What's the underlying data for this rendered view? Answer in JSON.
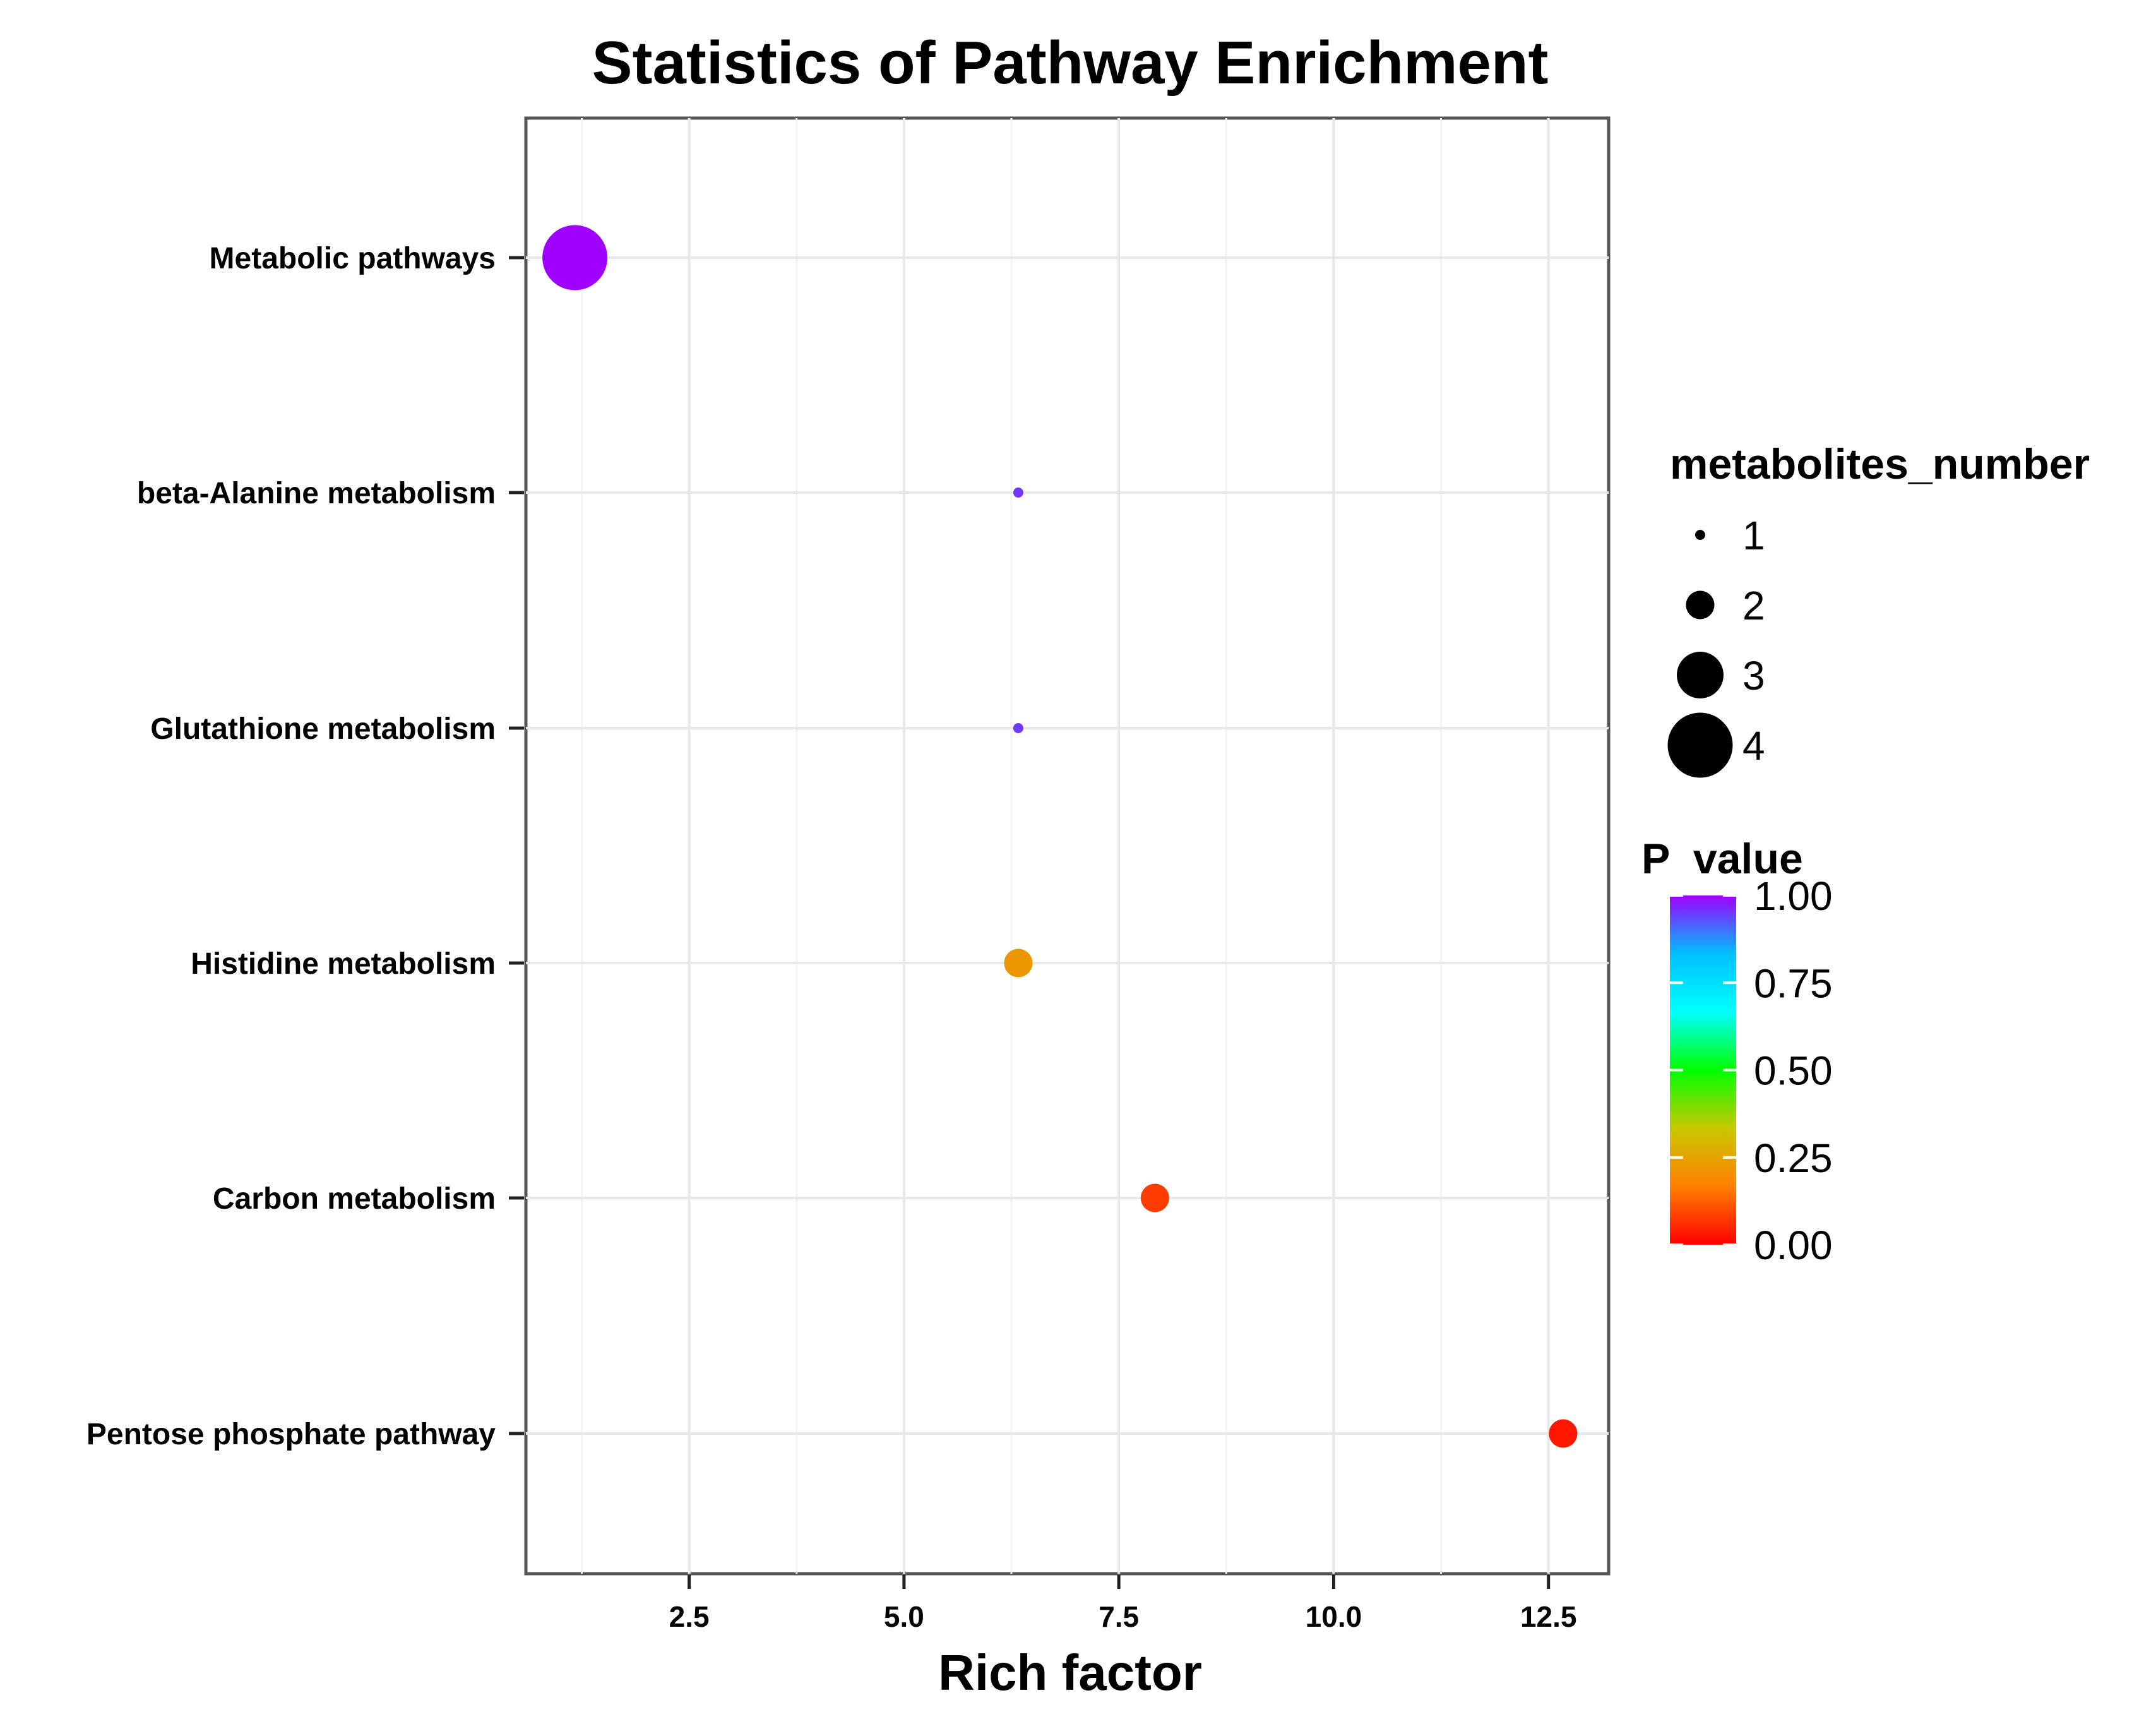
{
  "chart_data": {
    "type": "scatter",
    "title": "Statistics of Pathway Enrichment",
    "xlabel": "Rich factor",
    "ylabel": "",
    "xlim": [
      0.6,
      13.2
    ],
    "x_ticks": [
      2.5,
      5.0,
      7.5,
      10.0,
      12.5
    ],
    "x_tick_labels": [
      "2.5",
      "5.0",
      "7.5",
      "10.0",
      "12.5"
    ],
    "grid": true,
    "categories": [
      "Metabolic pathways",
      "beta-Alanine metabolism",
      "Glutathione metabolism",
      "Histidine metabolism",
      "Carbon metabolism",
      "Pentose phosphate pathway"
    ],
    "points": [
      {
        "pathway": "Metabolic pathways",
        "rich_factor": 1.17,
        "metabolites_number": 4,
        "p_value": 1.0
      },
      {
        "pathway": "beta-Alanine metabolism",
        "rich_factor": 6.33,
        "metabolites_number": 1,
        "p_value": 0.95
      },
      {
        "pathway": "Glutathione metabolism",
        "rich_factor": 6.33,
        "metabolites_number": 1,
        "p_value": 0.95
      },
      {
        "pathway": "Histidine metabolism",
        "rich_factor": 6.33,
        "metabolites_number": 2,
        "p_value": 0.22
      },
      {
        "pathway": "Carbon metabolism",
        "rich_factor": 7.92,
        "metabolites_number": 2,
        "p_value": 0.08
      },
      {
        "pathway": "Pentose phosphate pathway",
        "rich_factor": 12.67,
        "metabolites_number": 2,
        "p_value": 0.03
      }
    ],
    "legend_size": {
      "title": "metabolites_number",
      "values": [
        1,
        2,
        3,
        4
      ],
      "labels": [
        "1",
        "2",
        "3",
        "4"
      ]
    },
    "legend_color": {
      "title": "P  value",
      "range": [
        0.0,
        1.0
      ],
      "labels": [
        "1.00",
        "0.75",
        "0.50",
        "0.25",
        "0.00"
      ],
      "label_values": [
        1.0,
        0.75,
        0.5,
        0.25,
        0.0
      ],
      "gradient_colors": [
        "#ff0000",
        "#ff8000",
        "#c8c800",
        "#00ff00",
        "#00ffff",
        "#00bfff",
        "#9f00ff"
      ]
    }
  }
}
